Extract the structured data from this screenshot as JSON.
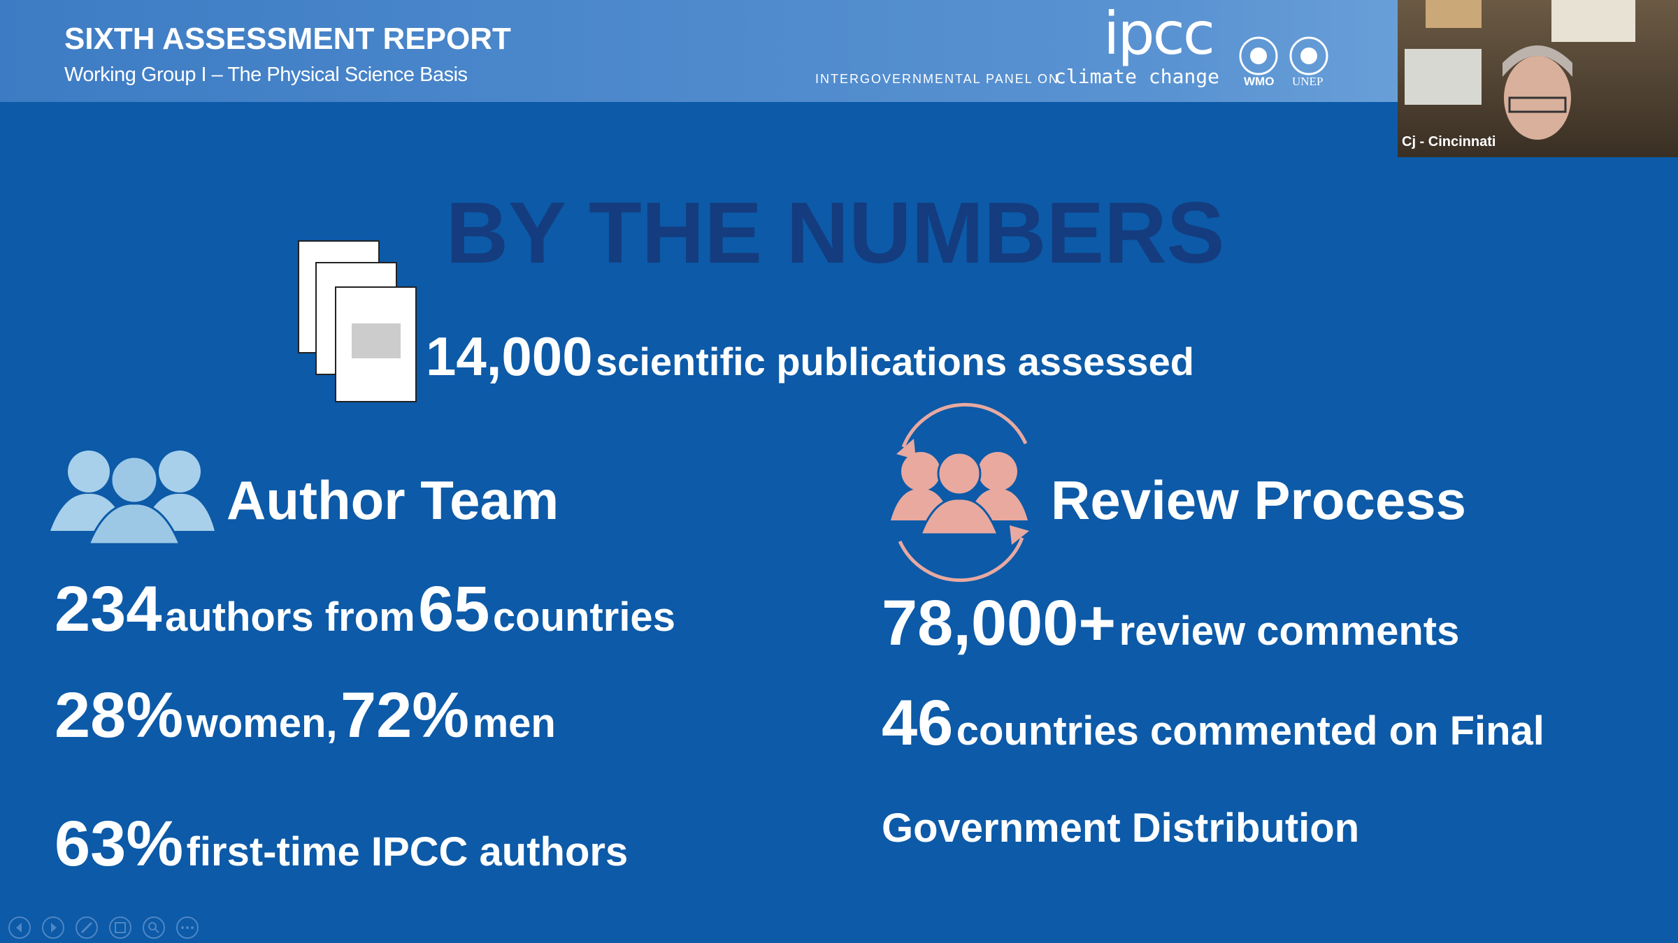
{
  "header": {
    "title": "SIXTH ASSESSMENT REPORT",
    "subtitle": "Working Group I – The Physical Science Basis"
  },
  "logos": {
    "ipcc": "ipcc",
    "ipcc_line1": "INTERGOVERNMENTAL PANEL ON",
    "ipcc_line2": "climate change",
    "wmo": "WMO",
    "unep": "UNEP"
  },
  "video": {
    "participant": "Cj - Cincinnati"
  },
  "slide": {
    "title": "BY THE NUMBERS",
    "publications": {
      "number": "14,000",
      "text": "scientific publications assessed"
    },
    "author_team": {
      "heading": "Author Team",
      "lines": [
        [
          "234",
          "authors from",
          "65",
          "countries"
        ],
        [
          "28%",
          "women,",
          "72%",
          "men"
        ],
        [
          "63%",
          "first-time IPCC authors"
        ]
      ]
    },
    "review_process": {
      "heading": "Review Process",
      "lines": [
        [
          "78,000+",
          "review comments"
        ],
        [
          "46",
          "countries commented on Final"
        ],
        [
          "Government Distribution"
        ]
      ]
    }
  }
}
